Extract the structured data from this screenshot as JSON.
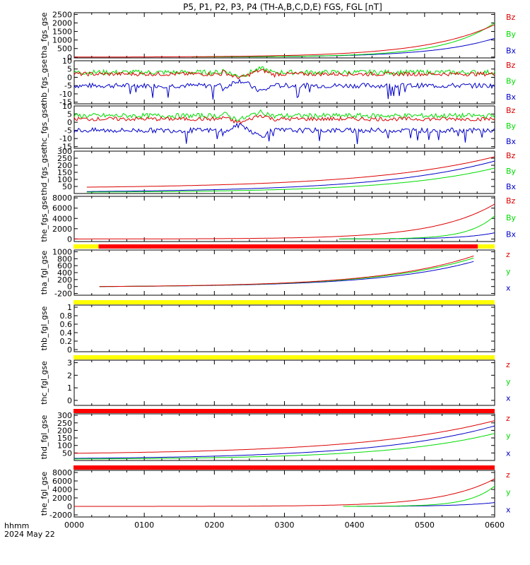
{
  "title": "P5, P1, P2, P3, P4 (TH-A,B,C,D,E) FGS, FGL [nT]",
  "footer": {
    "line1": "hhmm",
    "line2": "2024 May 22"
  },
  "x_ticks": [
    "0000",
    "0100",
    "0200",
    "0300",
    "0400",
    "0500",
    "0600"
  ],
  "colors": {
    "x": "#0000c8",
    "y": "#00dc00",
    "z": "#dc0000",
    "yellow": "#ffff00",
    "red": "#ff0000"
  },
  "chart_data": [
    {
      "type": "line",
      "ylabel": "tha_fgs_gse",
      "ylim": [
        -50,
        2600
      ],
      "ticks": [
        0,
        500,
        1000,
        1500,
        2000,
        2500
      ],
      "legend": [
        "Bz",
        "By",
        "Bx"
      ],
      "series": [
        {
          "name": "Bx",
          "color": "x",
          "shape": "growth",
          "start": 0.28,
          "end": 1.0,
          "base": 10,
          "peak": 1100,
          "k": 5
        },
        {
          "name": "By",
          "color": "y",
          "shape": "growth",
          "start": 0.28,
          "end": 1.0,
          "base": 10,
          "peak": 2000,
          "k": 6
        },
        {
          "name": "Bz",
          "color": "z",
          "shape": "growth",
          "start": 0.0,
          "end": 1.0,
          "base": 0,
          "peak": 1900,
          "k": 6
        }
      ]
    },
    {
      "type": "line",
      "ylabel": "thb_fgs_gse",
      "ylim": [
        -16,
        10
      ],
      "ticks": [
        -15,
        -10,
        -5,
        0,
        5,
        10
      ],
      "legend": [
        "Bz",
        "By",
        "Bx"
      ],
      "series": [
        {
          "name": "Bx",
          "color": "x",
          "shape": "noisy",
          "base": -5,
          "amp": 1.5,
          "dips": true
        },
        {
          "name": "By",
          "color": "y",
          "shape": "noisy",
          "base": 3,
          "amp": 1.5
        },
        {
          "name": "Bz",
          "color": "z",
          "shape": "noisy",
          "base": 2,
          "amp": 1.2
        }
      ]
    },
    {
      "type": "line",
      "ylabel": "thc_fgs_gse",
      "ylim": [
        -16,
        10
      ],
      "ticks": [
        -15,
        -10,
        -5,
        0,
        5,
        10
      ],
      "legend": [
        "Bz",
        "By",
        "Bx"
      ],
      "series": [
        {
          "name": "Bx",
          "color": "x",
          "shape": "noisy",
          "base": -5,
          "amp": 1.5,
          "dips": true
        },
        {
          "name": "By",
          "color": "y",
          "shape": "noisy",
          "base": 4,
          "amp": 1.5
        },
        {
          "name": "Bz",
          "color": "z",
          "shape": "noisy",
          "base": 2,
          "amp": 1.2
        }
      ]
    },
    {
      "type": "line",
      "ylabel": "thd_fgs_gse",
      "ylim": [
        0,
        300
      ],
      "ticks": [
        50,
        100,
        150,
        200,
        250,
        300
      ],
      "legend": [
        "Bz",
        "By",
        "Bx"
      ],
      "series": [
        {
          "name": "Bx",
          "color": "x",
          "shape": "growth",
          "start": 0.03,
          "end": 1.0,
          "base": 14,
          "peak": 230,
          "k": 3.5
        },
        {
          "name": "By",
          "color": "y",
          "shape": "growth",
          "start": 0.03,
          "end": 1.0,
          "base": 10,
          "peak": 180,
          "k": 4
        },
        {
          "name": "Bz",
          "color": "z",
          "shape": "growth",
          "start": 0.03,
          "end": 1.0,
          "base": 45,
          "peak": 260,
          "k": 3.2
        }
      ]
    },
    {
      "type": "line",
      "ylabel": "the_fgs_gse",
      "ylim": [
        -500,
        8300
      ],
      "ticks": [
        0,
        2000,
        4000,
        6000,
        8000
      ],
      "legend": [
        "Bz",
        "By",
        "Bx"
      ],
      "series": [
        {
          "name": "Bx",
          "color": "x",
          "shape": "growth",
          "start": 0.63,
          "end": 1.0,
          "base": 0,
          "peak": 1200,
          "k": 5
        },
        {
          "name": "By",
          "color": "y",
          "shape": "growth",
          "start": 0.63,
          "end": 1.0,
          "base": 0,
          "peak": 4500,
          "k": 6
        },
        {
          "name": "Bz",
          "color": "z",
          "shape": "growth",
          "start": 0.0,
          "end": 1.0,
          "base": 0,
          "peak": 6800,
          "k": 7
        }
      ]
    },
    {
      "type": "line",
      "ylabel": "tha_fgl_gse",
      "ylim": [
        -250,
        1050
      ],
      "ticks": [
        -200,
        0,
        200,
        400,
        600,
        800,
        1000
      ],
      "legend": [
        "z",
        "y",
        "x"
      ],
      "series": [
        {
          "name": "x",
          "color": "x",
          "shape": "growth",
          "start": 0.06,
          "end": 0.95,
          "base": 0,
          "peak": 720,
          "k": 4
        },
        {
          "name": "y",
          "color": "y",
          "shape": "growth",
          "start": 0.06,
          "end": 0.95,
          "base": 0,
          "peak": 820,
          "k": 4
        },
        {
          "name": "z",
          "color": "z",
          "shape": "growth",
          "start": 0.06,
          "end": 0.95,
          "base": 0,
          "peak": 880,
          "k": 4
        }
      ]
    },
    {
      "type": "line",
      "ylabel": "thb_fgl_gse",
      "ylim": [
        -0.05,
        1.05
      ],
      "ticks": [
        0.0,
        0.2,
        0.4,
        0.6,
        0.8,
        1.0
      ],
      "legend": [],
      "series": []
    },
    {
      "type": "line",
      "ylabel": "thc_fgl_gse",
      "ylim": [
        -0.4,
        3.2
      ],
      "ticks": [
        0,
        1,
        2,
        3
      ],
      "legend": [
        "z",
        "y",
        "x"
      ],
      "series": []
    },
    {
      "type": "line",
      "ylabel": "thd_fgl_gse",
      "ylim": [
        0,
        310
      ],
      "ticks": [
        50,
        100,
        150,
        200,
        250,
        300
      ],
      "legend": [
        "z",
        "y",
        "x"
      ],
      "series": [
        {
          "name": "x",
          "color": "x",
          "shape": "growth",
          "start": 0.0,
          "end": 1.0,
          "base": 14,
          "peak": 230,
          "k": 3.5
        },
        {
          "name": "y",
          "color": "y",
          "shape": "growth",
          "start": 0.0,
          "end": 1.0,
          "base": 10,
          "peak": 180,
          "k": 4
        },
        {
          "name": "z",
          "color": "z",
          "shape": "growth",
          "start": 0.0,
          "end": 1.0,
          "base": 48,
          "peak": 265,
          "k": 3.2
        }
      ]
    },
    {
      "type": "line",
      "ylabel": "the_fgl_gse",
      "ylim": [
        -2500,
        8500
      ],
      "ticks": [
        -2000,
        0,
        2000,
        4000,
        6000,
        8000
      ],
      "legend": [
        "z",
        "y",
        "x"
      ],
      "series": [
        {
          "name": "x",
          "color": "x",
          "shape": "growth",
          "start": 0.64,
          "end": 1.0,
          "base": 0,
          "peak": 900,
          "k": 4
        },
        {
          "name": "y",
          "color": "y",
          "shape": "growth",
          "start": 0.64,
          "end": 1.0,
          "base": 0,
          "peak": 4800,
          "k": 6
        },
        {
          "name": "z",
          "color": "z",
          "shape": "growth",
          "start": 0.0,
          "end": 1.0,
          "base": 0,
          "peak": 6500,
          "k": 8
        }
      ]
    }
  ]
}
